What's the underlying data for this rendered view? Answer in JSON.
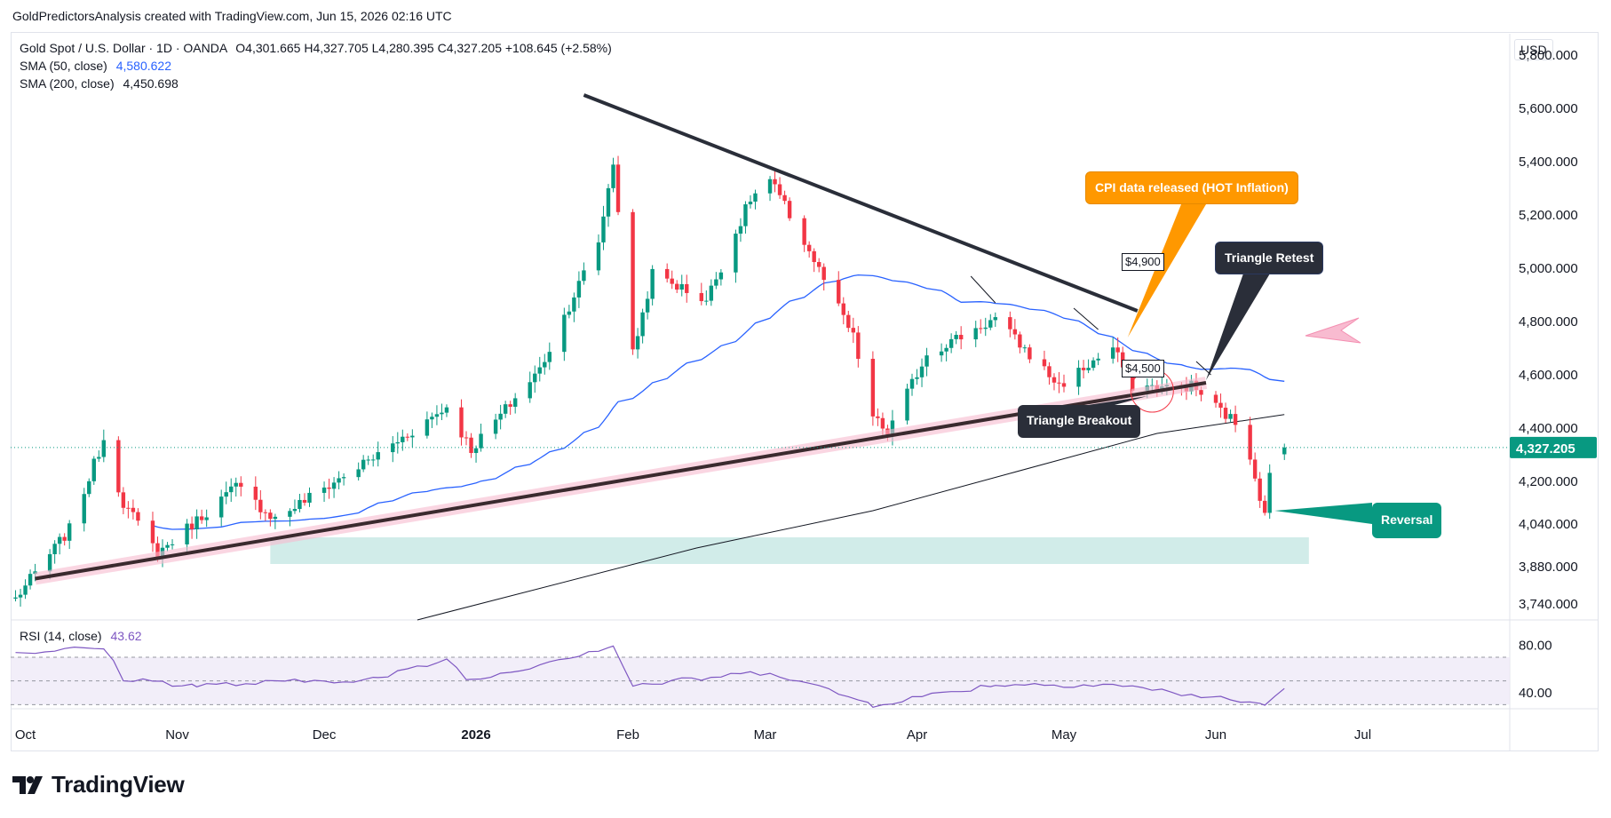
{
  "attribution": "GoldPredictorsAnalysis created with TradingView.com, Jun 15, 2026 02:16 UTC",
  "brand": {
    "name": "TradingView",
    "logo_icon": "tradingview-logo-icon"
  },
  "currency": "USD",
  "legend": {
    "symbol": "Gold Spot / U.S. Dollar · 1D · OANDA",
    "ohlc": "O4,301.665  H4,327.705  L4,280.395  C4,327.205  +108.645 (+2.58%)",
    "sma50_label": "SMA (50, close)",
    "sma50_value": "4,580.622",
    "sma200_label": "SMA (200, close)",
    "sma200_value": "4,450.698"
  },
  "rsi_legend": {
    "label": "RSI (14, close)",
    "value": "43.62"
  },
  "annotations": {
    "cpi": "CPI data released (HOT Inflation)",
    "retest": "Triangle Retest",
    "breakout": "Triangle Breakout",
    "reversal": "Reversal",
    "tag_4900": "$4,900",
    "tag_4500": "$4,500"
  },
  "colors": {
    "up": "#089981",
    "down": "#f23645",
    "sma50": "#2962ff",
    "sma200": "#131722",
    "rsi": "#7e57c2",
    "support_zone": "#b2dfdb"
  },
  "chart_data": {
    "type": "candlestick",
    "price_axis": {
      "ticks": [
        "5,800.000",
        "5,600.000",
        "5,400.000",
        "5,200.000",
        "5,000.000",
        "4,800.000",
        "4,600.000",
        "4,400.000",
        "4,200.000",
        "4,040.000",
        "3,880.000",
        "3,740.000"
      ],
      "ylim": [
        3680,
        5880
      ]
    },
    "current_price": "4,327.205",
    "x_ticks": [
      "Oct",
      "Nov",
      "Dec",
      "2026",
      "Feb",
      "Mar",
      "Apr",
      "May",
      "Jun",
      "Jul"
    ],
    "rsi_axis": {
      "ticks": [
        "80.00",
        "40.00"
      ]
    },
    "ohlc_anchors": [
      {
        "date": "2025-09-29",
        "close": 3760
      },
      {
        "date": "2025-10-10",
        "close": 4020
      },
      {
        "date": "2025-10-17",
        "close": 4360
      },
      {
        "date": "2025-10-21",
        "close": 4120
      },
      {
        "date": "2025-10-28",
        "close": 3930
      },
      {
        "date": "2025-11-13",
        "close": 4180
      },
      {
        "date": "2025-11-21",
        "close": 4060
      },
      {
        "date": "2025-12-12",
        "close": 4300
      },
      {
        "date": "2025-12-26",
        "close": 4480
      },
      {
        "date": "2025-12-31",
        "close": 4320
      },
      {
        "date": "2026-01-14",
        "close": 4620
      },
      {
        "date": "2026-01-26",
        "close": 5100
      },
      {
        "date": "2026-01-29",
        "close": 5400
      },
      {
        "date": "2026-02-02",
        "close": 4680
      },
      {
        "date": "2026-02-06",
        "close": 4980
      },
      {
        "date": "2026-02-17",
        "close": 4880
      },
      {
        "date": "2026-02-26",
        "close": 5260
      },
      {
        "date": "2026-03-02",
        "close": 5330
      },
      {
        "date": "2026-03-09",
        "close": 5100
      },
      {
        "date": "2026-03-19",
        "close": 4740
      },
      {
        "date": "2026-03-23",
        "close": 4440
      },
      {
        "date": "2026-03-26",
        "close": 4380
      },
      {
        "date": "2026-04-03",
        "close": 4680
      },
      {
        "date": "2026-04-17",
        "close": 4810
      },
      {
        "date": "2026-04-30",
        "close": 4560
      },
      {
        "date": "2026-05-11",
        "close": 4700
      },
      {
        "date": "2026-05-15",
        "close": 4560
      },
      {
        "date": "2026-05-22",
        "close": 4550
      },
      {
        "date": "2026-05-27",
        "close": 4560
      },
      {
        "date": "2026-06-01",
        "close": 4480
      },
      {
        "date": "2026-06-05",
        "close": 4420
      },
      {
        "date": "2026-06-08",
        "close": 4300
      },
      {
        "date": "2026-06-11",
        "close": 4070
      },
      {
        "date": "2026-06-12",
        "close": 4220
      },
      {
        "date": "2026-06-15",
        "close": 4327.205
      }
    ],
    "support_zone": [
      3890,
      3990
    ],
    "trendlines": {
      "resistance": [
        {
          "date": "2026-01-23",
          "price": 5650
        },
        {
          "date": "2026-05-16",
          "price": 4840
        }
      ],
      "support": [
        {
          "date": "2025-10-03",
          "price": 3835
        },
        {
          "date": "2026-05-30",
          "price": 4570
        }
      ]
    },
    "rsi_anchors": [
      {
        "date": "2025-09-29",
        "value": 74
      },
      {
        "date": "2025-10-17",
        "value": 78
      },
      {
        "date": "2025-10-21",
        "value": 52
      },
      {
        "date": "2025-11-05",
        "value": 46
      },
      {
        "date": "2025-12-12",
        "value": 52
      },
      {
        "date": "2025-12-26",
        "value": 68
      },
      {
        "date": "2025-12-31",
        "value": 50
      },
      {
        "date": "2026-01-29",
        "value": 80
      },
      {
        "date": "2026-02-02",
        "value": 46
      },
      {
        "date": "2026-03-02",
        "value": 58
      },
      {
        "date": "2026-03-23",
        "value": 30
      },
      {
        "date": "2026-04-17",
        "value": 47
      },
      {
        "date": "2026-05-11",
        "value": 47
      },
      {
        "date": "2026-06-11",
        "value": 30
      },
      {
        "date": "2026-06-15",
        "value": 43.62
      }
    ]
  }
}
